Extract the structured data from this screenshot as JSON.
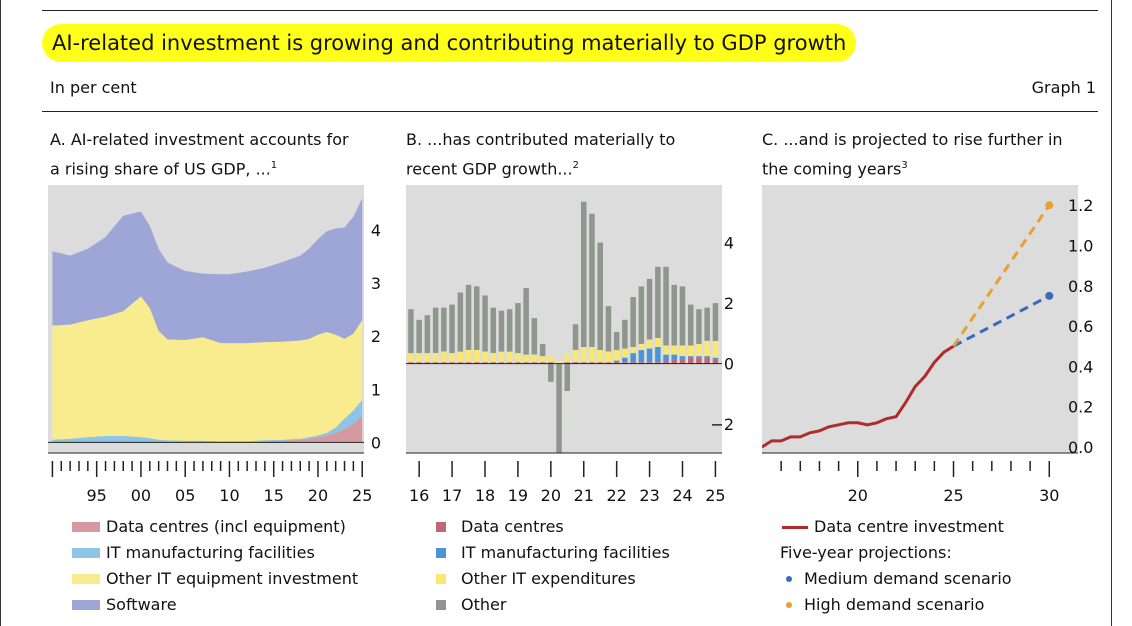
{
  "header": {
    "title": "AI-related investment is growing and contributing materially to GDP growth",
    "subtitle": "In per cent",
    "graph_label": "Graph 1"
  },
  "panels": {
    "a": {
      "title_line1": "A. AI-related investment accounts for",
      "title_line2": "a rising share of US GDP, ...",
      "note": "1"
    },
    "b": {
      "title_line1": "B. ...has contributed materially to",
      "title_line2": "recent GDP growth...",
      "note": "2"
    },
    "c": {
      "title_line1": "C. ...and is projected to rise further in",
      "title_line2": "the coming years",
      "note": "3"
    }
  },
  "legends": {
    "a": [
      "Data centres (incl equipment)",
      "IT manufacturing facilities",
      "Other IT equipment investment",
      "Software"
    ],
    "b": [
      "Data centres",
      "IT manufacturing facilities",
      "Other IT expenditures",
      "Other"
    ],
    "c_line": "Data centre investment",
    "c_heading": "Five-year projections:",
    "c_points": [
      "Medium demand scenario",
      "High demand scenario"
    ]
  },
  "colors": {
    "data_centres_a": "#d59aa0",
    "it_mfg_a": "#8ec4e8",
    "other_it_a": "#f8ec8f",
    "software_a": "#9da6d6",
    "data_centres_b": "#c06878",
    "it_mfg_b": "#4a94d8",
    "other_it_b": "#f8e870",
    "other_b": "#8e968e",
    "line_c": "#b02c2c",
    "medium": "#3a6ab8",
    "high": "#e8a030",
    "plot_bg": "#dcdcdc"
  },
  "chart_data": [
    {
      "type": "area",
      "panel": "A",
      "x": [
        1990,
        1992,
        1994,
        1996,
        1998,
        2000,
        2001,
        2002,
        2003,
        2005,
        2007,
        2009,
        2010,
        2012,
        2014,
        2016,
        2018,
        2019,
        2020,
        2021,
        2022,
        2023,
        2024,
        2025
      ],
      "series": [
        {
          "name": "Data centres (incl equipment)",
          "values": [
            0.0,
            0.0,
            0.0,
            0.0,
            0.0,
            0.0,
            0.0,
            0.0,
            0.0,
            0.0,
            0.0,
            0.0,
            0.0,
            0.0,
            0.02,
            0.03,
            0.05,
            0.07,
            0.1,
            0.13,
            0.18,
            0.25,
            0.35,
            0.5
          ]
        },
        {
          "name": "IT manufacturing facilities",
          "values": [
            0.05,
            0.07,
            0.1,
            0.12,
            0.12,
            0.1,
            0.08,
            0.05,
            0.04,
            0.03,
            0.03,
            0.02,
            0.02,
            0.02,
            0.02,
            0.02,
            0.02,
            0.03,
            0.03,
            0.05,
            0.1,
            0.2,
            0.25,
            0.3
          ]
        },
        {
          "name": "Other IT equipment investment",
          "values": [
            2.15,
            2.15,
            2.2,
            2.25,
            2.35,
            2.65,
            2.45,
            2.05,
            1.9,
            1.9,
            1.95,
            1.85,
            1.85,
            1.85,
            1.85,
            1.85,
            1.85,
            1.85,
            1.9,
            1.9,
            1.75,
            1.5,
            1.45,
            1.5
          ]
        },
        {
          "name": "Software",
          "values": [
            1.4,
            1.3,
            1.35,
            1.5,
            1.8,
            1.6,
            1.55,
            1.55,
            1.45,
            1.3,
            1.2,
            1.3,
            1.3,
            1.35,
            1.4,
            1.5,
            1.6,
            1.7,
            1.8,
            1.9,
            2.0,
            2.1,
            2.2,
            2.3
          ]
        }
      ],
      "xticks": [
        "95",
        "00",
        "05",
        "10",
        "15",
        "20",
        "25"
      ],
      "yticks": [
        0,
        1,
        2,
        3,
        4
      ],
      "ylim": [
        -0.2,
        4.85
      ],
      "axis_side": "right"
    },
    {
      "type": "bar",
      "panel": "B",
      "stacked": true,
      "x": [
        2015.75,
        2016.0,
        2016.25,
        2016.5,
        2016.75,
        2017.0,
        2017.25,
        2017.5,
        2017.75,
        2018.0,
        2018.25,
        2018.5,
        2018.75,
        2019.0,
        2019.25,
        2019.5,
        2019.75,
        2020.0,
        2020.25,
        2020.5,
        2020.75,
        2021.0,
        2021.25,
        2021.5,
        2021.75,
        2022.0,
        2022.25,
        2022.5,
        2022.75,
        2023.0,
        2023.25,
        2023.5,
        2023.75,
        2024.0,
        2024.25,
        2024.5,
        2024.75,
        2025.0
      ],
      "series": [
        {
          "name": "Data centres",
          "values": [
            0.05,
            0.05,
            0.05,
            0.05,
            0.05,
            0.05,
            0.05,
            0.05,
            0.05,
            0.05,
            0.05,
            0.05,
            0.05,
            0.05,
            0.05,
            0.05,
            0.05,
            0.05,
            0.0,
            0.05,
            0.05,
            0.05,
            0.05,
            0.05,
            0.05,
            0.05,
            0.05,
            0.05,
            0.05,
            0.05,
            0.05,
            0.1,
            0.15,
            0.15,
            0.2,
            0.2,
            0.2,
            0.15
          ]
        },
        {
          "name": "IT manufacturing facilities",
          "values": [
            0.0,
            0.0,
            0.0,
            0.0,
            0.0,
            0.0,
            0.0,
            0.0,
            0.0,
            0.0,
            0.0,
            0.0,
            0.0,
            0.0,
            0.0,
            0.0,
            0.0,
            0.0,
            0.0,
            0.0,
            0.0,
            0.0,
            0.0,
            0.0,
            0.0,
            0.05,
            0.15,
            0.3,
            0.4,
            0.45,
            0.5,
            0.2,
            0.15,
            0.1,
            0.05,
            0.05,
            0.05,
            0.05
          ]
        },
        {
          "name": "Other IT expenditures",
          "values": [
            0.3,
            0.3,
            0.3,
            0.3,
            0.35,
            0.3,
            0.35,
            0.4,
            0.4,
            0.35,
            0.3,
            0.35,
            0.35,
            0.3,
            0.25,
            0.25,
            0.2,
            0.2,
            0.1,
            0.3,
            0.4,
            0.5,
            0.5,
            0.4,
            0.35,
            0.35,
            0.3,
            0.2,
            0.2,
            0.3,
            0.3,
            0.3,
            0.3,
            0.35,
            0.35,
            0.4,
            0.5,
            0.55
          ]
        },
        {
          "name": "Other",
          "values": [
            1.45,
            1.1,
            1.25,
            1.5,
            1.45,
            1.6,
            1.95,
            2.15,
            2.1,
            1.85,
            1.5,
            1.35,
            1.4,
            1.65,
            2.2,
            1.2,
            0.4,
            -0.6,
            -3.1,
            -0.9,
            0.85,
            4.8,
            4.4,
            3.55,
            1.5,
            0.6,
            0.95,
            1.65,
            1.9,
            2.0,
            2.35,
            2.6,
            2.0,
            1.95,
            1.35,
            1.15,
            1.1,
            1.25
          ]
        }
      ],
      "xticks": [
        "16",
        "17",
        "18",
        "19",
        "20",
        "21",
        "22",
        "23",
        "24",
        "25"
      ],
      "yticks": [
        -2,
        0,
        2,
        4
      ],
      "ylim": [
        -2.95,
        5.9
      ],
      "axis_side": "right"
    },
    {
      "type": "line",
      "panel": "C",
      "series": [
        {
          "name": "Data centre investment",
          "x": [
            2015,
            2015.5,
            2016,
            2016.5,
            2017,
            2017.5,
            2018,
            2018.5,
            2019,
            2019.5,
            2020,
            2020.5,
            2021,
            2021.5,
            2022,
            2022.5,
            2023,
            2023.5,
            2024,
            2024.5,
            2025
          ],
          "values": [
            0.0,
            0.03,
            0.03,
            0.05,
            0.05,
            0.07,
            0.08,
            0.1,
            0.11,
            0.12,
            0.12,
            0.11,
            0.12,
            0.14,
            0.15,
            0.22,
            0.3,
            0.35,
            0.42,
            0.47,
            0.5
          ]
        },
        {
          "name": "Medium demand scenario",
          "x": [
            2025,
            2030
          ],
          "values": [
            0.5,
            0.75
          ]
        },
        {
          "name": "High demand scenario",
          "x": [
            2025,
            2030
          ],
          "values": [
            0.5,
            1.2
          ]
        }
      ],
      "xticks": [
        "20",
        "25",
        "30"
      ],
      "yticks": [
        0.0,
        0.2,
        0.4,
        0.6,
        0.8,
        1.0,
        1.2
      ],
      "ytick_labels": [
        "0.0",
        "0.2",
        "0.4",
        "0.6",
        "0.8",
        "1.0",
        "1.2"
      ],
      "ylim": [
        -0.03,
        1.3
      ],
      "axis_side": "right"
    }
  ]
}
